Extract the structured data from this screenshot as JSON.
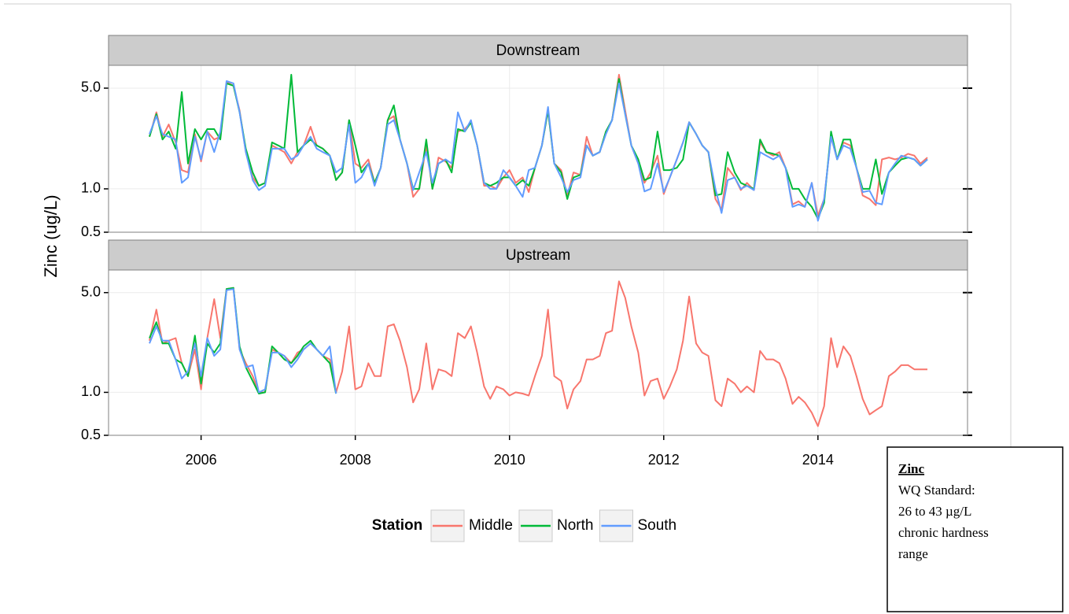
{
  "chart_data": {
    "type": "line",
    "ylabel": "Zinc (ug/L)",
    "legend_title": "Station",
    "log_y": true,
    "grid": true,
    "xlim": [
      2004.8,
      2015.94
    ],
    "xticks": [
      2006,
      2008,
      2010,
      2012,
      2014
    ],
    "ylim": [
      0.5,
      7.2
    ],
    "yticks": [
      0.5,
      {
        "value": 1,
        "label": "1.0"
      },
      {
        "value": 5,
        "label": "5.0"
      }
    ],
    "x": [
      2005.33,
      2005.42,
      2005.5,
      2005.58,
      2005.67,
      2005.75,
      2005.83,
      2005.92,
      2006,
      2006.08,
      2006.17,
      2006.25,
      2006.33,
      2006.42,
      2006.5,
      2006.58,
      2006.67,
      2006.75,
      2006.83,
      2006.92,
      2007,
      2007.08,
      2007.17,
      2007.25,
      2007.33,
      2007.42,
      2007.5,
      2007.58,
      2007.67,
      2007.75,
      2007.83,
      2007.92,
      2008,
      2008.08,
      2008.17,
      2008.25,
      2008.33,
      2008.42,
      2008.5,
      2008.58,
      2008.67,
      2008.75,
      2008.83,
      2008.92,
      2009,
      2009.08,
      2009.17,
      2009.25,
      2009.33,
      2009.42,
      2009.5,
      2009.58,
      2009.67,
      2009.75,
      2009.83,
      2009.92,
      2010,
      2010.08,
      2010.17,
      2010.25,
      2010.33,
      2010.42,
      2010.5,
      2010.58,
      2010.67,
      2010.75,
      2010.83,
      2010.92,
      2011,
      2011.08,
      2011.17,
      2011.25,
      2011.33,
      2011.42,
      2011.5,
      2011.58,
      2011.67,
      2011.75,
      2011.83,
      2011.92,
      2012,
      2012.08,
      2012.17,
      2012.25,
      2012.33,
      2012.42,
      2012.5,
      2012.58,
      2012.67,
      2012.75,
      2012.83,
      2012.92,
      2013,
      2013.08,
      2013.17,
      2013.25,
      2013.33,
      2013.42,
      2013.5,
      2013.58,
      2013.67,
      2013.75,
      2013.83,
      2013.92,
      2014,
      2014.08,
      2014.17,
      2014.25,
      2014.33,
      2014.42,
      2014.5,
      2014.58,
      2014.67,
      2014.75,
      2014.83,
      2014.92,
      2015,
      2015.08,
      2015.17,
      2015.25,
      2015.33,
      2015.42
    ],
    "panels": [
      {
        "title": "Downstream",
        "series": [
          {
            "name": "Middle",
            "color": "#F8766D",
            "values": [
              2.3,
              3.4,
              2.3,
              2.8,
              2.1,
              1.35,
              1.3,
              2.4,
              1.55,
              2.5,
              2.2,
              2.3,
              5.5,
              5.2,
              3.5,
              1.8,
              1.2,
              1.05,
              1.1,
              2.0,
              1.9,
              1.8,
              1.5,
              1.8,
              2.0,
              2.7,
              2.0,
              1.9,
              1.7,
              1.15,
              1.3,
              3.0,
              1.5,
              1.4,
              1.6,
              1.1,
              1.4,
              3.0,
              3.2,
              2.2,
              1.5,
              0.88,
              1.0,
              2.0,
              1.0,
              1.65,
              1.55,
              1.4,
              2.5,
              2.6,
              2.9,
              2.0,
              1.05,
              1.05,
              1.0,
              1.2,
              1.35,
              1.1,
              1.2,
              0.95,
              1.4,
              2.0,
              3.5,
              1.5,
              1.35,
              0.9,
              1.3,
              1.25,
              2.3,
              1.7,
              1.8,
              2.5,
              3.0,
              6.2,
              3.5,
              2.0,
              1.5,
              1.1,
              1.3,
              1.7,
              0.92,
              1.2,
              1.6,
              2.1,
              2.9,
              2.4,
              2.0,
              1.8,
              0.85,
              0.72,
              1.4,
              1.2,
              0.98,
              1.1,
              0.98,
              2.1,
              1.8,
              1.7,
              1.8,
              1.4,
              0.78,
              0.82,
              0.75,
              1.1,
              0.65,
              0.85,
              2.3,
              1.6,
              2.1,
              2.0,
              1.4,
              0.9,
              0.85,
              0.77,
              1.6,
              1.65,
              1.6,
              1.65,
              1.75,
              1.7,
              1.5,
              1.65
            ]
          },
          {
            "name": "North",
            "color": "#00BA38",
            "values": [
              2.3,
              3.3,
              2.2,
              2.5,
              1.9,
              4.7,
              1.5,
              2.6,
              2.2,
              2.6,
              2.6,
              2.2,
              5.4,
              5.2,
              3.4,
              1.9,
              1.3,
              1.05,
              1.1,
              2.1,
              2.0,
              1.9,
              6.2,
              1.8,
              2.0,
              2.2,
              2.0,
              1.9,
              1.7,
              1.15,
              1.3,
              3.0,
              2.0,
              1.3,
              1.5,
              1.1,
              1.4,
              3.0,
              3.8,
              2.2,
              1.5,
              1.0,
              1.0,
              2.2,
              1.0,
              1.5,
              1.6,
              1.3,
              2.6,
              2.5,
              2.9,
              2.0,
              1.1,
              1.05,
              1.1,
              1.2,
              1.2,
              1.05,
              1.15,
              1.05,
              1.4,
              2.0,
              3.5,
              1.5,
              1.3,
              0.85,
              1.2,
              1.25,
              2.0,
              1.7,
              1.8,
              2.5,
              3.0,
              5.8,
              3.3,
              2.0,
              1.6,
              1.15,
              1.2,
              2.5,
              1.35,
              1.35,
              1.4,
              1.6,
              2.9,
              2.4,
              2.0,
              1.8,
              0.9,
              0.92,
              1.8,
              1.3,
              1.1,
              1.05,
              1.0,
              2.2,
              1.8,
              1.75,
              1.7,
              1.4,
              1.0,
              1.0,
              0.85,
              0.75,
              0.62,
              0.8,
              2.5,
              1.6,
              2.2,
              2.2,
              1.4,
              1.0,
              1.0,
              1.6,
              0.92,
              1.3,
              1.45,
              1.6,
              1.65,
              1.6,
              1.45,
              1.6
            ]
          },
          {
            "name": "South",
            "color": "#619CFF",
            "values": [
              2.4,
              3.2,
              2.4,
              2.3,
              2.2,
              1.1,
              1.2,
              2.3,
              1.6,
              2.5,
              1.8,
              2.5,
              5.6,
              5.4,
              3.4,
              1.8,
              1.15,
              0.98,
              1.05,
              1.9,
              1.9,
              1.9,
              1.6,
              1.7,
              2.0,
              2.3,
              1.9,
              1.8,
              1.7,
              1.3,
              1.4,
              2.8,
              1.1,
              1.2,
              1.5,
              1.05,
              1.4,
              2.8,
              3.0,
              2.2,
              1.5,
              0.98,
              1.3,
              1.8,
              1.1,
              1.5,
              1.6,
              1.5,
              3.4,
              2.5,
              3.0,
              2.0,
              1.1,
              1.0,
              1.0,
              1.35,
              1.2,
              1.05,
              0.88,
              1.35,
              1.4,
              2.0,
              3.7,
              1.5,
              1.2,
              0.95,
              1.15,
              1.2,
              2.0,
              1.7,
              1.8,
              2.4,
              3.0,
              5.4,
              3.3,
              2.0,
              1.5,
              0.96,
              1.0,
              1.5,
              0.95,
              1.2,
              1.6,
              2.1,
              2.9,
              2.4,
              2.0,
              1.8,
              1.0,
              0.68,
              1.15,
              1.2,
              1.0,
              1.05,
              0.98,
              1.8,
              1.7,
              1.6,
              1.7,
              1.4,
              0.75,
              0.78,
              0.75,
              1.1,
              0.6,
              0.85,
              2.3,
              1.6,
              2.0,
              1.9,
              1.4,
              0.95,
              0.97,
              0.8,
              0.78,
              1.3,
              1.5,
              1.7,
              1.65,
              1.6,
              1.45,
              1.6
            ]
          }
        ]
      },
      {
        "title": "Upstream",
        "series": [
          {
            "name": "Middle",
            "color": "#F8766D",
            "values": [
              2.3,
              3.8,
              2.2,
              2.3,
              2.4,
              1.6,
              1.3,
              2.0,
              1.05,
              2.4,
              4.5,
              2.4,
              5.3,
              5.4,
              2.0,
              1.6,
              1.3,
              1.0,
              1.0,
              2.0,
              1.9,
              1.8,
              1.6,
              1.9,
              2.0,
              2.2,
              2.0,
              1.8,
              1.7,
              1.0,
              1.4,
              2.9,
              1.05,
              1.1,
              1.6,
              1.3,
              1.3,
              2.9,
              3.0,
              2.3,
              1.5,
              0.85,
              1.05,
              2.2,
              1.05,
              1.45,
              1.4,
              1.3,
              2.6,
              2.4,
              2.9,
              1.9,
              1.1,
              0.9,
              1.1,
              1.05,
              0.95,
              1.0,
              0.98,
              0.95,
              1.3,
              1.8,
              3.8,
              1.3,
              1.2,
              0.77,
              1.05,
              1.2,
              1.7,
              1.7,
              1.8,
              2.6,
              2.7,
              6.0,
              4.6,
              2.9,
              1.9,
              0.95,
              1.2,
              1.25,
              0.9,
              1.1,
              1.45,
              2.3,
              4.7,
              2.2,
              1.9,
              1.8,
              0.88,
              0.8,
              1.25,
              1.15,
              1.0,
              1.1,
              1.0,
              1.95,
              1.7,
              1.7,
              1.6,
              1.25,
              0.83,
              0.93,
              0.85,
              0.72,
              0.58,
              0.8,
              2.4,
              1.5,
              2.1,
              1.8,
              1.3,
              0.9,
              0.7,
              0.75,
              0.8,
              1.3,
              1.4,
              1.55,
              1.55,
              1.45,
              1.45,
              1.45
            ]
          },
          {
            "name": "North",
            "color": "#00BA38",
            "values": [
              2.4,
              3.1,
              2.2,
              2.2,
              1.7,
              1.6,
              1.3,
              2.5,
              1.15,
              2.2,
              1.9,
              2.2,
              5.3,
              5.4,
              2.1,
              1.5,
              1.2,
              0.98,
              1.0,
              2.1,
              1.9,
              1.7,
              1.6,
              1.8,
              2.1,
              2.3,
              2.0,
              1.8,
              1.6,
              0.98,
              null,
              null,
              null,
              null,
              null,
              null,
              null,
              null,
              null,
              null,
              null,
              null,
              null,
              null,
              null,
              null,
              null,
              null,
              null,
              null,
              null,
              null,
              null,
              null,
              null,
              null,
              null,
              null,
              null,
              null,
              null,
              null,
              null,
              null,
              null,
              null,
              null,
              null,
              null,
              null,
              null,
              null,
              null,
              null,
              null,
              null,
              null,
              null,
              null,
              null,
              null,
              null,
              null,
              null,
              null,
              null,
              null,
              null,
              null,
              null,
              null,
              null,
              null,
              null,
              null,
              null,
              null,
              null,
              null,
              null,
              null,
              null,
              null,
              null,
              null,
              null,
              null,
              null,
              null,
              null,
              null,
              null,
              null,
              null,
              null,
              null,
              null,
              null,
              null,
              null,
              null,
              null
            ]
          },
          {
            "name": "South",
            "color": "#619CFF",
            "values": [
              2.2,
              2.9,
              2.3,
              2.3,
              1.7,
              1.25,
              1.4,
              2.2,
              1.3,
              2.4,
              1.8,
              2.0,
              5.2,
              5.3,
              2.0,
              1.5,
              1.55,
              1.0,
              1.05,
              1.9,
              1.9,
              1.8,
              1.5,
              1.7,
              2.0,
              2.2,
              2.0,
              1.8,
              2.1,
              0.98,
              null,
              null,
              null,
              null,
              null,
              null,
              null,
              null,
              null,
              null,
              null,
              null,
              null,
              null,
              null,
              null,
              null,
              null,
              null,
              null,
              null,
              null,
              null,
              null,
              null,
              null,
              null,
              null,
              null,
              null,
              null,
              null,
              null,
              null,
              null,
              null,
              null,
              null,
              null,
              null,
              null,
              null,
              null,
              null,
              null,
              null,
              null,
              null,
              null,
              null,
              null,
              null,
              null,
              null,
              null,
              null,
              null,
              null,
              null,
              null,
              null,
              null,
              null,
              null,
              null,
              null,
              null,
              null,
              null,
              null,
              null,
              null,
              null,
              null,
              null,
              null,
              null,
              null,
              null,
              null,
              null,
              null,
              null,
              null,
              null,
              null,
              null,
              null,
              null,
              null,
              null,
              null
            ]
          }
        ]
      }
    ]
  },
  "annotation": {
    "title": "Zinc",
    "lines": [
      "WQ Standard:",
      "26 to 43 µg/L",
      "chronic hardness",
      "range"
    ]
  }
}
